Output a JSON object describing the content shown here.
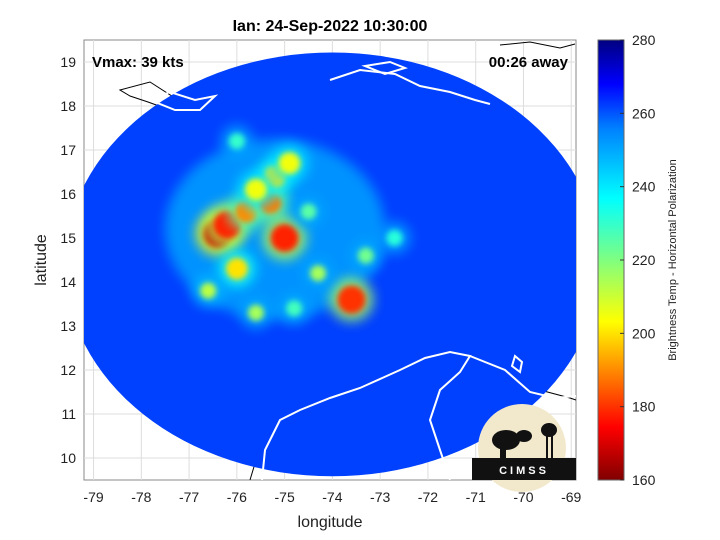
{
  "chart_data": {
    "type": "heatmap",
    "title": "Ian: 24-Sep-2022 10:30:00",
    "annotations": {
      "vmax": "Vmax: 39 kts",
      "time_away": "00:26 away"
    },
    "xlabel": "longitude",
    "ylabel": "latitude",
    "xlim": [
      -79.2,
      -68.9
    ],
    "ylim": [
      9.5,
      19.5
    ],
    "xticks": [
      -79,
      -78,
      -77,
      -76,
      -75,
      -74,
      -73,
      -72,
      -71,
      -70,
      -69
    ],
    "yticks": [
      10,
      11,
      12,
      13,
      14,
      15,
      16,
      17,
      18,
      19
    ],
    "grid": true,
    "swath": {
      "center": [
        -74.0,
        14.4
      ],
      "radius_deg": 5.6,
      "background_value": 262
    },
    "cold_cells": [
      {
        "lon": -76.4,
        "lat": 15.1,
        "value": 168
      },
      {
        "lon": -76.2,
        "lat": 15.3,
        "value": 178
      },
      {
        "lon": -75.8,
        "lat": 15.6,
        "value": 190
      },
      {
        "lon": -75.3,
        "lat": 15.8,
        "value": 188
      },
      {
        "lon": -75.0,
        "lat": 15.0,
        "value": 178
      },
      {
        "lon": -75.2,
        "lat": 16.4,
        "value": 200
      },
      {
        "lon": -74.9,
        "lat": 16.7,
        "value": 205
      },
      {
        "lon": -75.6,
        "lat": 16.1,
        "value": 205
      },
      {
        "lon": -76.0,
        "lat": 14.3,
        "value": 200
      },
      {
        "lon": -73.6,
        "lat": 13.6,
        "value": 180
      },
      {
        "lon": -74.3,
        "lat": 14.2,
        "value": 215
      },
      {
        "lon": -73.3,
        "lat": 14.6,
        "value": 222
      },
      {
        "lon": -75.6,
        "lat": 13.3,
        "value": 215
      },
      {
        "lon": -76.6,
        "lat": 13.8,
        "value": 212
      },
      {
        "lon": -74.5,
        "lat": 15.6,
        "value": 225
      },
      {
        "lon": -74.8,
        "lat": 13.4,
        "value": 228
      },
      {
        "lon": -76.0,
        "lat": 17.2,
        "value": 230
      },
      {
        "lon": -72.7,
        "lat": 15.0,
        "value": 232
      }
    ],
    "colorbar": {
      "label": "Brightness Temp - Horizontal Polarization",
      "range": [
        160,
        280
      ],
      "ticks": [
        160,
        180,
        200,
        220,
        240,
        260,
        280
      ],
      "colormap": "jet"
    }
  },
  "logo": {
    "text": "CIMSS"
  },
  "colors": {
    "background": "#ffffff",
    "grid": "#dddddd",
    "coastline": "#ffffff",
    "land_outline": "#000000"
  }
}
